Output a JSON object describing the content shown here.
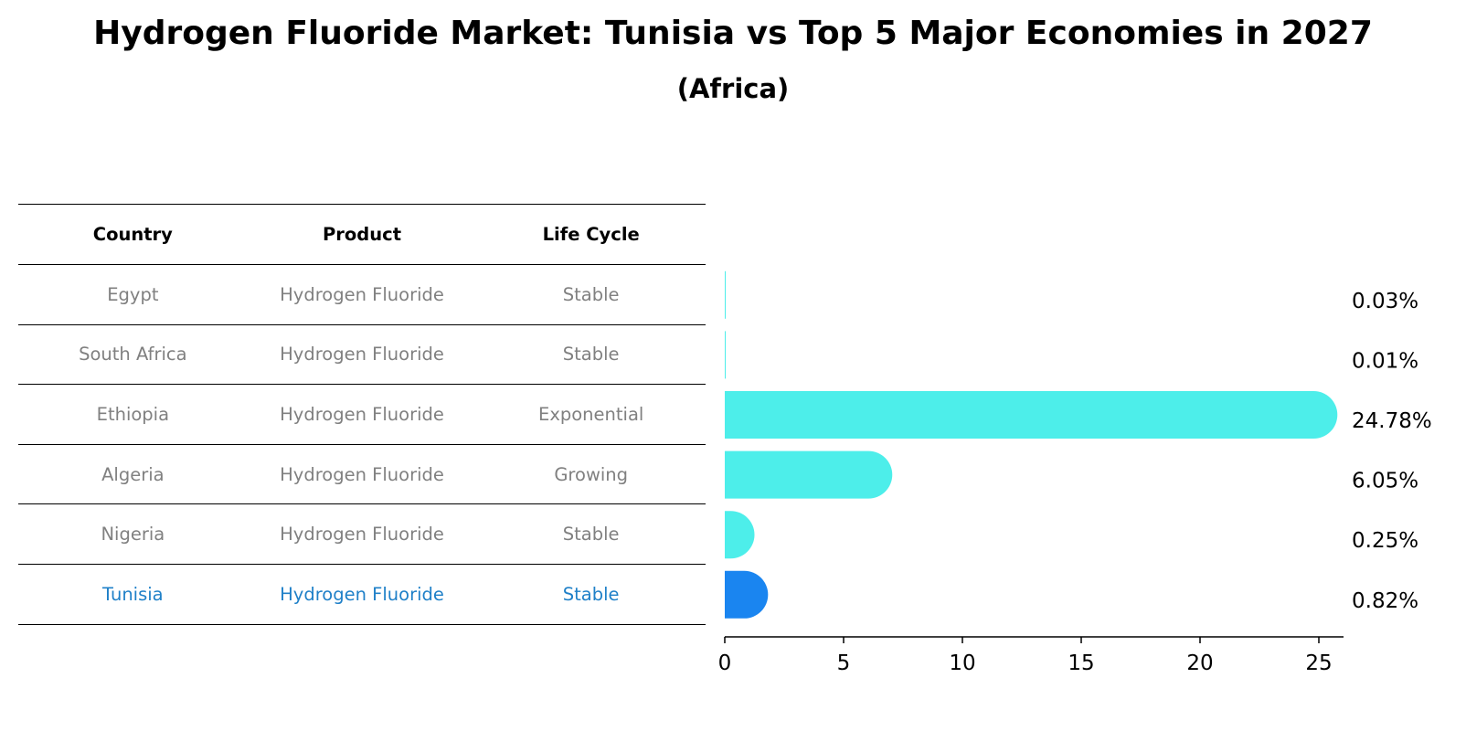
{
  "title": "Hydrogen Fluoride Market: Tunisia vs Top 5 Major Economies in 2027",
  "subtitle": "(Africa)",
  "table": {
    "headers": [
      "Country",
      "Product",
      "Life Cycle"
    ],
    "rows": [
      {
        "country": "Egypt",
        "product": "Hydrogen Fluoride",
        "life_cycle": "Stable"
      },
      {
        "country": "South Africa",
        "product": "Hydrogen Fluoride",
        "life_cycle": "Stable"
      },
      {
        "country": "Ethiopia",
        "product": "Hydrogen Fluoride",
        "life_cycle": "Exponential"
      },
      {
        "country": "Algeria",
        "product": "Hydrogen Fluoride",
        "life_cycle": "Growing"
      },
      {
        "country": "Nigeria",
        "product": "Hydrogen Fluoride",
        "life_cycle": "Stable"
      },
      {
        "country": "Tunisia",
        "product": "Hydrogen Fluoride",
        "life_cycle": "Stable"
      }
    ],
    "highlight_row": "Tunisia",
    "highlight_color": "#1f80c8",
    "text_color": "#808080"
  },
  "chart_data": {
    "type": "bar",
    "orientation": "horizontal",
    "categories": [
      "Egypt",
      "South Africa",
      "Ethiopia",
      "Algeria",
      "Nigeria",
      "Tunisia"
    ],
    "values": [
      0.03,
      0.01,
      24.78,
      6.05,
      0.25,
      0.82
    ],
    "value_labels": [
      "0.03%",
      "0.01%",
      "24.78%",
      "6.05%",
      "0.25%",
      "0.82%"
    ],
    "xlim": [
      0,
      26
    ],
    "xticks": [
      0,
      5,
      10,
      15,
      20,
      25
    ],
    "bar_color": "#4deeea",
    "highlight_color": "#1a85f0",
    "highlight_category": "Tunisia",
    "grid": false
  }
}
